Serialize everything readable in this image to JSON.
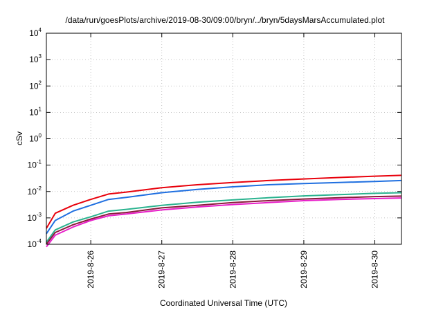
{
  "chart_data": {
    "type": "line",
    "title": "/data/run/goesPlots/archive/2019-08-30/09:00/bryn/../bryn/5daysMarsAccumulated.plot",
    "xlabel": "Coordinated Universal Time (UTC)",
    "ylabel": "cSv",
    "yscale": "log",
    "ylim": [
      0.0001,
      10000
    ],
    "y_ticks": [
      {
        "value": 0.0001,
        "base": "10",
        "exp": "-4"
      },
      {
        "value": 0.001,
        "base": "10",
        "exp": "-3"
      },
      {
        "value": 0.01,
        "base": "10",
        "exp": "-2"
      },
      {
        "value": 0.1,
        "base": "10",
        "exp": "-1"
      },
      {
        "value": 1,
        "base": "10",
        "exp": "0"
      },
      {
        "value": 10,
        "base": "10",
        "exp": "1"
      },
      {
        "value": 100,
        "base": "10",
        "exp": "2"
      },
      {
        "value": 1000,
        "base": "10",
        "exp": "3"
      },
      {
        "value": 10000,
        "base": "10",
        "exp": "4"
      }
    ],
    "x_ticks": [
      "2019-8-26",
      "2019-8-27",
      "2019-8-28",
      "2019-8-29",
      "2019-8-30"
    ],
    "xlim": [
      "2019-08-25T09:00",
      "2019-08-30T09:00"
    ],
    "grid": true,
    "series": [
      {
        "color": "#e8000b",
        "x": [
          "2019-08-25T09:00",
          "2019-08-25T12:00",
          "2019-08-25T18:00",
          "2019-08-26T00:00",
          "2019-08-26T06:00",
          "2019-08-26T12:00",
          "2019-08-27T00:00",
          "2019-08-27T12:00",
          "2019-08-28T00:00",
          "2019-08-28T12:00",
          "2019-08-29T00:00",
          "2019-08-29T12:00",
          "2019-08-30T00:00",
          "2019-08-30T09:00"
        ],
        "y": [
          0.0004,
          0.0015,
          0.003,
          0.005,
          0.008,
          0.0095,
          0.014,
          0.018,
          0.022,
          0.026,
          0.03,
          0.034,
          0.038,
          0.041
        ]
      },
      {
        "color": "#1f6fe0",
        "x": [
          "2019-08-25T09:00",
          "2019-08-25T12:00",
          "2019-08-25T18:00",
          "2019-08-26T00:00",
          "2019-08-26T06:00",
          "2019-08-26T12:00",
          "2019-08-27T00:00",
          "2019-08-27T12:00",
          "2019-08-28T00:00",
          "2019-08-28T12:00",
          "2019-08-29T00:00",
          "2019-08-29T12:00",
          "2019-08-30T00:00",
          "2019-08-30T09:00"
        ],
        "y": [
          0.00025,
          0.0008,
          0.0018,
          0.003,
          0.005,
          0.006,
          0.009,
          0.012,
          0.015,
          0.018,
          0.02,
          0.022,
          0.024,
          0.026
        ]
      },
      {
        "color": "#2ab38f",
        "x": [
          "2019-08-25T09:00",
          "2019-08-25T12:00",
          "2019-08-25T18:00",
          "2019-08-26T00:00",
          "2019-08-26T06:00",
          "2019-08-26T12:00",
          "2019-08-27T00:00",
          "2019-08-27T12:00",
          "2019-08-28T00:00",
          "2019-08-28T12:00",
          "2019-08-29T00:00",
          "2019-08-29T12:00",
          "2019-08-30T00:00",
          "2019-08-30T09:00"
        ],
        "y": [
          0.00012,
          0.00035,
          0.0007,
          0.0011,
          0.0018,
          0.0021,
          0.003,
          0.0039,
          0.0048,
          0.0058,
          0.0068,
          0.0076,
          0.0085,
          0.009
        ]
      },
      {
        "color": "#8a1a3a",
        "x": [
          "2019-08-25T09:00",
          "2019-08-25T12:00",
          "2019-08-25T18:00",
          "2019-08-26T00:00",
          "2019-08-26T06:00",
          "2019-08-26T12:00",
          "2019-08-27T00:00",
          "2019-08-27T12:00",
          "2019-08-28T00:00",
          "2019-08-28T12:00",
          "2019-08-29T00:00",
          "2019-08-29T12:00",
          "2019-08-30T00:00",
          "2019-08-30T09:00"
        ],
        "y": [
          0.0001,
          0.00028,
          0.00055,
          0.0009,
          0.0014,
          0.0016,
          0.0024,
          0.003,
          0.0038,
          0.0045,
          0.0052,
          0.0058,
          0.0064,
          0.0067
        ]
      },
      {
        "color": "#e81ec9",
        "x": [
          "2019-08-25T09:00",
          "2019-08-25T12:00",
          "2019-08-25T18:00",
          "2019-08-26T00:00",
          "2019-08-26T06:00",
          "2019-08-26T12:00",
          "2019-08-27T00:00",
          "2019-08-27T12:00",
          "2019-08-28T00:00",
          "2019-08-28T12:00",
          "2019-08-29T00:00",
          "2019-08-29T12:00",
          "2019-08-30T00:00",
          "2019-08-30T09:00"
        ],
        "y": [
          8e-05,
          0.00022,
          0.00045,
          0.0008,
          0.0012,
          0.0014,
          0.002,
          0.0026,
          0.0032,
          0.0038,
          0.0045,
          0.005,
          0.0054,
          0.0057
        ]
      }
    ]
  }
}
